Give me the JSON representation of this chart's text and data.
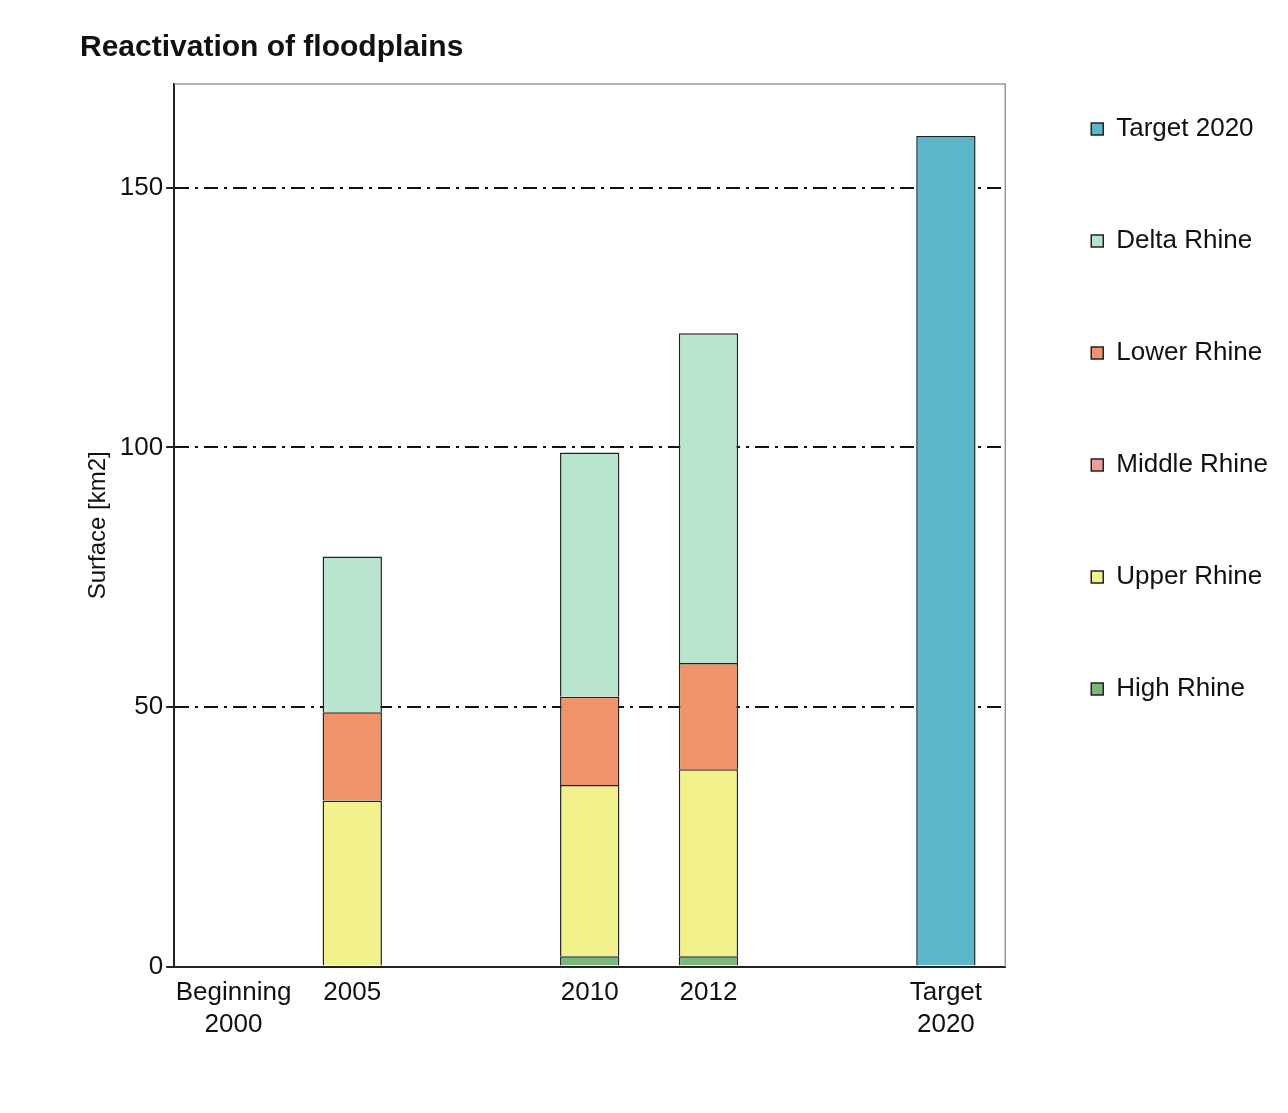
{
  "chart_data": {
    "type": "bar",
    "title": "Reactivation of floodplains",
    "ylabel": "Surface [km2]",
    "categories": [
      "Beginning 2000",
      "2005",
      null,
      "2010",
      "2012",
      null,
      "Target 2020"
    ],
    "stacked": true,
    "ylim": [
      0,
      170
    ],
    "yticks": [
      0,
      50,
      100,
      150
    ],
    "grid": "y",
    "line_style": "dashed",
    "legend": "right",
    "series": [
      {
        "name": "High Rhine",
        "color": "#7cb87c",
        "values": [
          0,
          0,
          null,
          2,
          2,
          null,
          null
        ]
      },
      {
        "name": "Upper Rhine",
        "color": "#f2f28c",
        "values": [
          0,
          32,
          null,
          33,
          36,
          null,
          null
        ]
      },
      {
        "name": "Middle Rhine",
        "color": "#ec9e9e",
        "values": [
          0,
          0,
          null,
          0,
          0,
          null,
          null
        ]
      },
      {
        "name": "Lower Rhine",
        "color": "#f0926a",
        "values": [
          0,
          17,
          null,
          17,
          20.5,
          null,
          null
        ]
      },
      {
        "name": "Delta Rhine",
        "color": "#b9e4cd",
        "values": [
          0,
          30,
          null,
          47,
          63.5,
          null,
          null
        ]
      },
      {
        "name": "Target 2020",
        "color": "#5cb6c9",
        "values": [
          null,
          null,
          null,
          null,
          null,
          null,
          160
        ]
      }
    ]
  }
}
